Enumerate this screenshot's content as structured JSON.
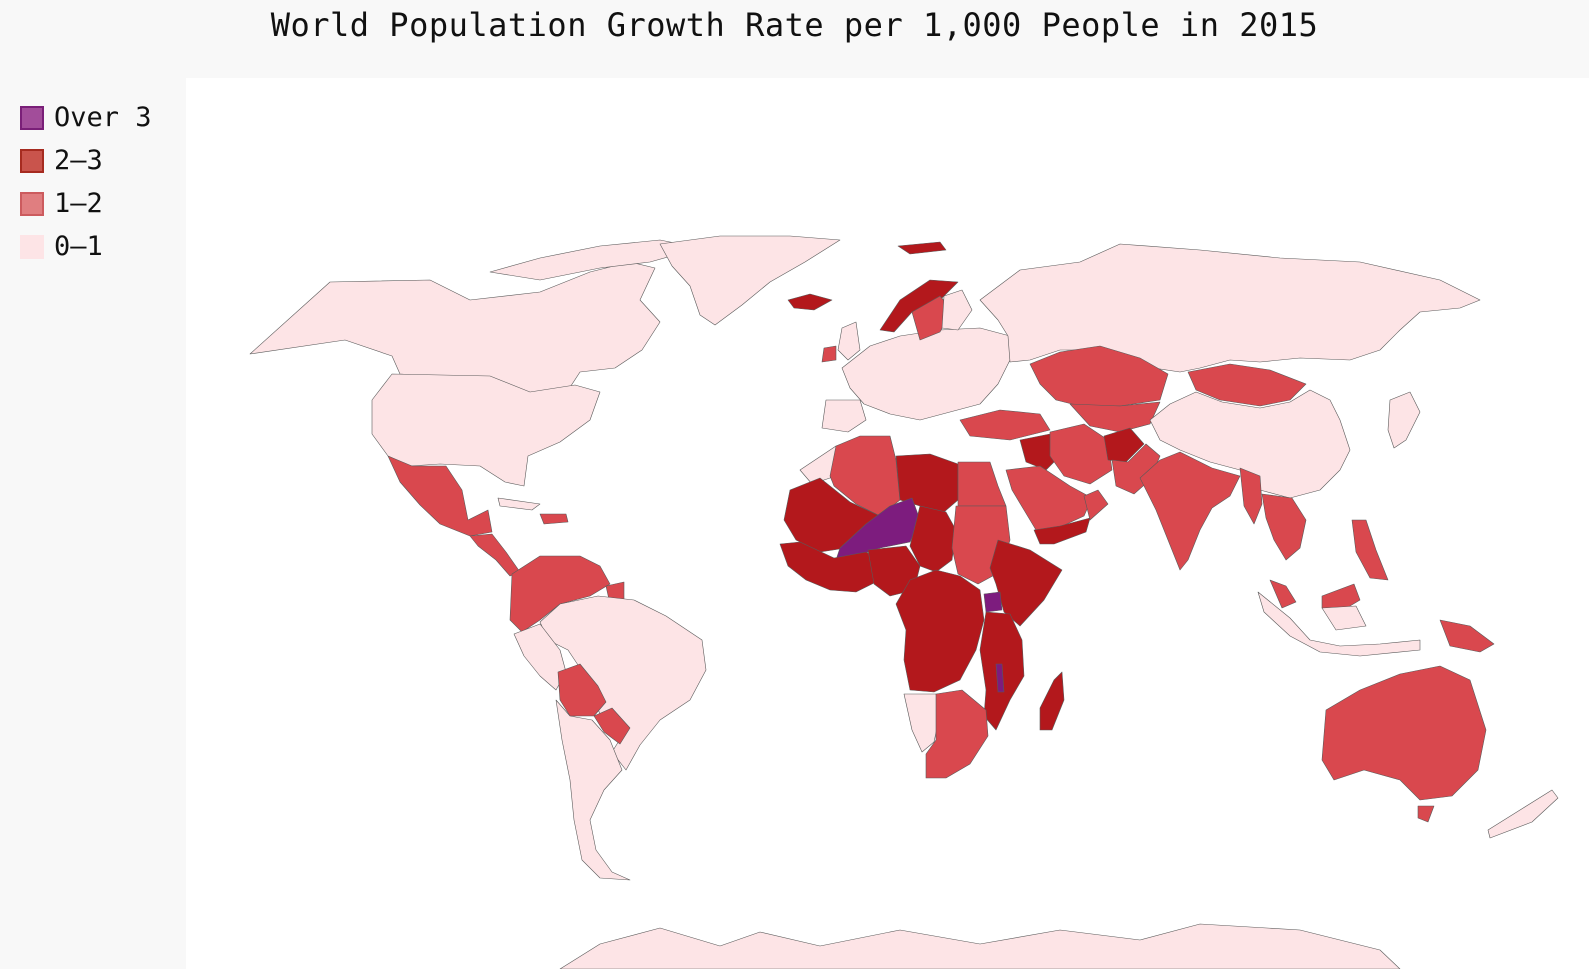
{
  "title": "World Population Growth Rate per 1,000 People in 2015",
  "legend": [
    {
      "label": "Over 3",
      "color": "#a24d9a",
      "border": "#7a1f78"
    },
    {
      "label": "2–3",
      "color": "#c9544c",
      "border": "#a62b20"
    },
    {
      "label": "1–2",
      "color": "#e07e80",
      "border": "#cc5b5e"
    },
    {
      "label": "0–1",
      "color": "#fde4e6",
      "border": "#fde4e6"
    }
  ],
  "colors": {
    "over_3": "#7d1c7e",
    "2_3": "#b3181c",
    "1_2": "#d9484e",
    "0_1": "#fde4e6",
    "plot_background": "#ffffff",
    "page_background": "#f8f8f8",
    "border": "#5a5a5a"
  },
  "map_data": {
    "type": "choropleth",
    "bins": [
      "0–1",
      "1–2",
      "2–3",
      "Over 3"
    ],
    "regions_by_bin": {
      "Over 3": [
        "Niger",
        "Uganda",
        "Malawi"
      ],
      "2–3": [
        "Mali",
        "Mauritania",
        "Libya",
        "Chad",
        "Nigeria",
        "Burkina Faso",
        "Senegal",
        "Ghana",
        "Cameroon",
        "Central African Republic",
        "DR Congo",
        "Angola",
        "Tanzania",
        "Zambia",
        "Mozambique",
        "Ethiopia",
        "Yemen",
        "Iraq",
        "Afghanistan",
        "Madagascar",
        "Norway",
        "Iceland",
        "Kenya",
        "Somalia",
        "Congo",
        "Gabon"
      ],
      "1–2": [
        "Mexico",
        "Central America",
        "Venezuela",
        "Colombia",
        "Guyana",
        "Bolivia",
        "Paraguay",
        "Algeria",
        "Egypt",
        "Sudan",
        "South Africa",
        "Zimbabwe",
        "Saudi Arabia",
        "Oman",
        "Iran",
        "Turkey",
        "Kazakhstan",
        "Mongolia",
        "India",
        "Pakistan",
        "Myanmar",
        "Philippines",
        "Malaysia",
        "Papua New Guinea",
        "Australia",
        "Ireland",
        "Sweden",
        "Dominican Republic",
        "Turkmenistan",
        "Uzbekistan"
      ],
      "0–1": [
        "Canada",
        "United States",
        "Greenland",
        "Brazil",
        "Argentina",
        "Chile",
        "Peru",
        "Russia",
        "China",
        "Europe",
        "Japan",
        "Indonesia",
        "Namibia",
        "New Zealand",
        "Morocco"
      ]
    }
  }
}
